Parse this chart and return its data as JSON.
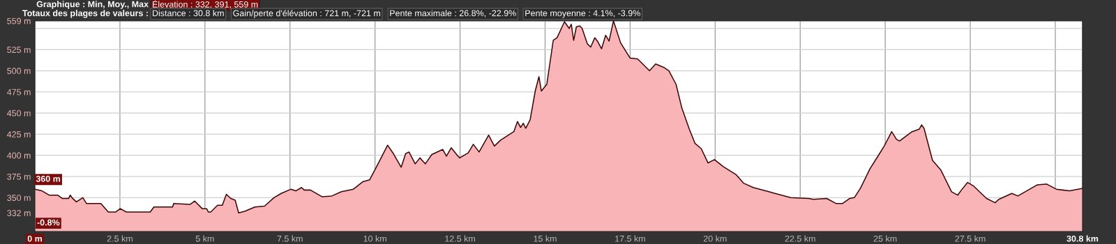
{
  "chart_data": {
    "type": "area",
    "annotations": [
      "Graphique : Min, Moy., Max",
      "Élevation : 332, 391, 559 m",
      "Totaux des plages de valeurs :",
      "Distance : 30.8 km",
      "Gain/perte d'élévation : 721 m, -721 m",
      "Pente maximale : 26.8%, -22.9%",
      "Pente moyenne : 4.1%, -3.9%",
      {
        "text": "360 m",
        "x": 0,
        "y": 360
      },
      "-0.8%"
    ],
    "x": [
      0,
      0.21,
      0.42,
      0.67,
      0.81,
      0.99,
      1.04,
      1.09,
      1.22,
      1.41,
      1.52,
      1.94,
      2.16,
      2.37,
      2.51,
      2.69,
      3.39,
      3.5,
      4.05,
      4.08,
      4.56,
      4.7,
      4.92,
      5.05,
      5.1,
      5.17,
      5.37,
      5.51,
      5.63,
      5.76,
      5.89,
      5.99,
      6.18,
      6.47,
      6.75,
      7.03,
      7.24,
      7.53,
      7.67,
      7.84,
      7.92,
      8.1,
      8.45,
      8.73,
      9.01,
      9.36,
      9.65,
      9.84,
      10.05,
      10.37,
      10.54,
      10.77,
      10.9,
      11.0,
      11.18,
      11.32,
      11.48,
      11.67,
      11.99,
      12.1,
      12.24,
      12.42,
      12.49,
      12.74,
      12.89,
      13.06,
      13.34,
      13.51,
      13.69,
      14.08,
      14.19,
      14.28,
      14.36,
      14.43,
      14.56,
      14.71,
      14.82,
      14.89,
      15.05,
      15.24,
      15.35,
      15.57,
      15.71,
      15.77,
      15.84,
      15.92,
      16.02,
      16.09,
      16.24,
      16.34,
      16.46,
      16.54,
      16.66,
      16.78,
      16.88,
      17.01,
      17.22,
      17.5,
      17.72,
      18.07,
      18.25,
      18.49,
      18.64,
      18.85,
      19.02,
      19.24,
      19.41,
      19.59,
      19.79,
      19.98,
      20.23,
      20.62,
      20.84,
      21.12,
      21.58,
      21.76,
      22.22,
      22.75,
      22.89,
      23.28,
      23.56,
      23.74,
      23.95,
      24.09,
      24.27,
      24.55,
      24.8,
      24.97,
      25.19,
      25.33,
      25.42,
      25.65,
      25.79,
      26.0,
      26.07,
      26.14,
      26.39,
      26.63,
      26.95,
      27.13,
      27.24,
      27.42,
      27.59,
      27.77,
      27.98,
      28.23,
      28.34,
      28.72,
      28.9,
      29.46,
      29.75,
      30.03,
      30.42,
      30.8
    ],
    "series": [
      {
        "color": "#f8b4b6",
        "values": [
          360,
          358,
          353,
          353,
          349,
          349,
          353,
          350,
          345,
          350,
          343,
          343,
          333,
          333,
          337,
          333,
          333,
          339,
          339,
          343,
          342,
          346,
          337,
          337,
          333,
          333,
          341,
          341,
          354,
          349,
          347,
          332,
          334,
          339,
          340,
          350,
          355,
          360,
          358,
          362,
          359,
          359,
          351,
          352,
          357,
          360,
          369,
          371,
          387,
          412,
          402,
          386,
          402,
          404,
          390,
          397,
          390,
          401,
          407,
          399,
          409,
          400,
          397,
          403,
          413,
          404,
          424,
          411,
          418,
          428,
          440,
          433,
          438,
          432,
          442,
          476,
          493,
          476,
          484,
          536,
          539,
          558,
          550,
          555,
          536,
          552,
          553,
          550,
          532,
          528,
          539,
          535,
          526,
          542,
          535,
          559,
          533,
          515,
          514,
          500,
          508,
          504,
          500,
          484,
          456,
          431,
          414,
          408,
          391,
          395,
          387,
          377,
          367,
          362,
          357,
          355,
          350,
          349,
          348,
          349,
          343,
          343,
          349,
          350,
          361,
          384,
          400,
          411,
          428,
          419,
          417,
          424,
          428,
          431,
          436,
          432,
          394,
          383,
          357,
          353,
          359,
          368,
          364,
          357,
          349,
          344,
          348,
          355,
          352,
          365,
          366,
          360,
          358,
          361
        ]
      }
    ],
    "xlim": [
      0,
      30.8
    ],
    "xticks": [
      {
        "value": 0,
        "label": "0 m"
      },
      {
        "value": 2.5,
        "label": "2.5 km"
      },
      {
        "value": 5,
        "label": "5 km"
      },
      {
        "value": 7.5,
        "label": "7.5 km"
      },
      {
        "value": 10,
        "label": "10 km"
      },
      {
        "value": 12.5,
        "label": "12.5 km"
      },
      {
        "value": 15,
        "label": "15 km"
      },
      {
        "value": 17.5,
        "label": "17.5 km"
      },
      {
        "value": 20,
        "label": "20 km"
      },
      {
        "value": 22.5,
        "label": "22.5 km"
      },
      {
        "value": 25,
        "label": "25 km"
      },
      {
        "value": 27.5,
        "label": "27.5 km"
      },
      {
        "value": 30,
        "label": null
      },
      {
        "value": 30.8,
        "label": "30.8 km"
      }
    ],
    "ylim": [
      310,
      559
    ],
    "yticks": [
      {
        "value": 332,
        "label": "332 m"
      },
      {
        "value": 350,
        "label": "350 m"
      },
      {
        "value": 375,
        "label": "375 m"
      },
      {
        "value": 400,
        "label": "400 m"
      },
      {
        "value": 425,
        "label": "425 m"
      },
      {
        "value": 450,
        "label": "450 m"
      },
      {
        "value": 475,
        "label": "475 m"
      },
      {
        "value": 500,
        "label": "500 m"
      },
      {
        "value": 525,
        "label": "525 m"
      },
      {
        "value": 550,
        "label": null
      },
      {
        "value": 559,
        "label": "559 m"
      }
    ],
    "grid": true,
    "legend": false
  }
}
